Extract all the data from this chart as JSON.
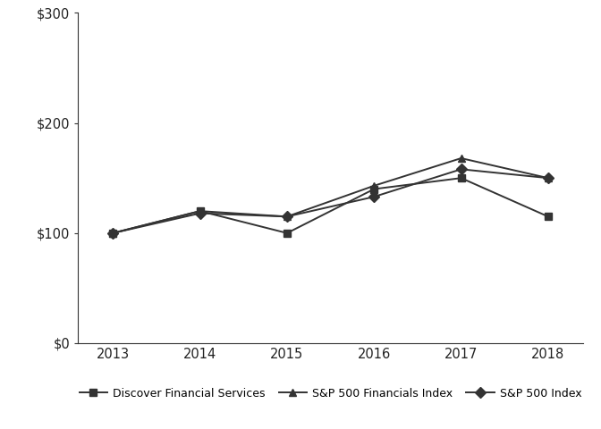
{
  "years": [
    2013,
    2014,
    2015,
    2016,
    2017,
    2018
  ],
  "discover": [
    100,
    120,
    100,
    140,
    150,
    115
  ],
  "sp500_fin": [
    100,
    120,
    115,
    143,
    168,
    150
  ],
  "sp500": [
    100,
    118,
    115,
    133,
    158,
    150
  ],
  "ylim": [
    0,
    300
  ],
  "yticks": [
    0,
    100,
    200,
    300
  ],
  "ytick_labels": [
    "$0",
    "$100",
    "$200",
    "$300"
  ],
  "xlim": [
    2012.6,
    2018.4
  ],
  "line_color": "#333333",
  "background_color": "#ffffff",
  "legend_labels": [
    "Discover Financial Services",
    "S&P 500 Financials Index",
    "S&P 500 Index"
  ],
  "marker_discover": "s",
  "marker_sp500_fin": "^",
  "marker_sp500": "D",
  "linewidth": 1.4,
  "markersize": 6
}
